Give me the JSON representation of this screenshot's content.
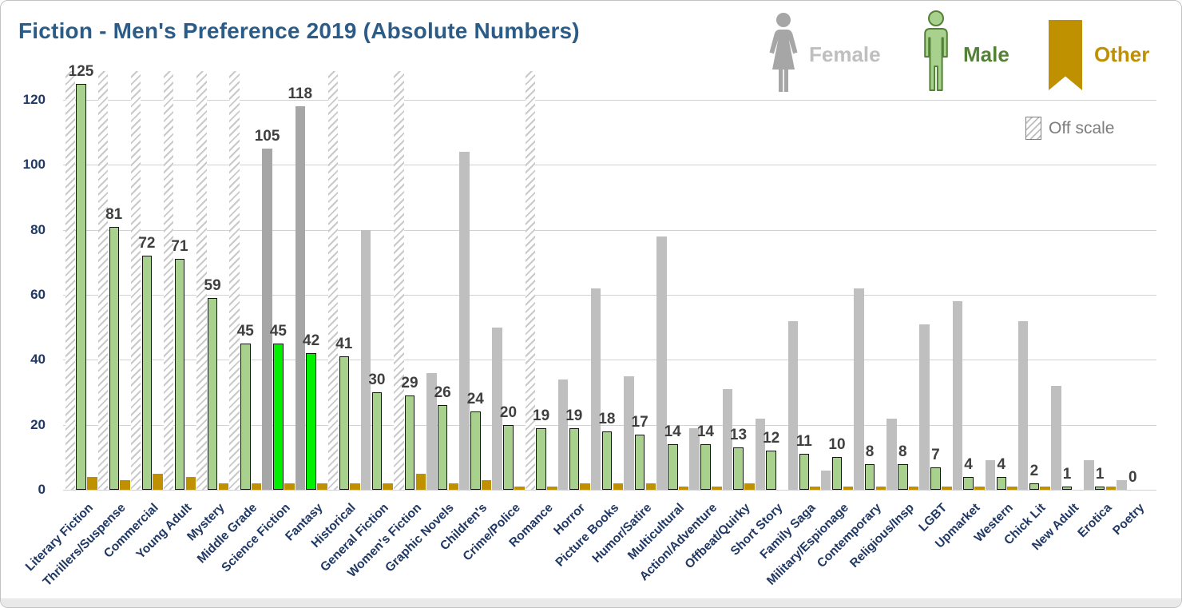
{
  "title": "Fiction - Men's Preference 2019 (Absolute Numbers)",
  "legend": {
    "female": "Female",
    "male": "Male",
    "other": "Other",
    "off_scale": "Off scale"
  },
  "colors": {
    "title": "#2b5c88",
    "axis_labels": "#1f3864",
    "value_labels": "#3f3f3f",
    "female_bar": "#bfbfbf",
    "female_bar_highlight": "#a6a6a6",
    "male_bar": "#a9d18e",
    "male_bar_highlight": "#00f000",
    "male_bar_border": "#141414",
    "other_bar": "#bf9000",
    "gridline": "#d2d2d2",
    "legend_female_text": "#bfbfbf",
    "legend_male_text": "#538135",
    "legend_other_text": "#bf9000",
    "off_scale_text": "#7d7d7d"
  },
  "chart_data": {
    "type": "bar",
    "title": "Fiction - Men's Preference 2019 (Absolute Numbers)",
    "xlabel": "",
    "ylabel": "",
    "ylim": [
      0,
      130
    ],
    "yticks": [
      0,
      20,
      40,
      60,
      80,
      100,
      120
    ],
    "grid": true,
    "legend_position": "top-right",
    "categories": [
      "Literary Fiction",
      "Thrillers/Suspense",
      "Commercial",
      "Young Adult",
      "Mystery",
      "Middle Grade",
      "Science Fiction",
      "Fantasy",
      "Historical",
      "General Fiction",
      "Women's Fiction",
      "Graphic Novels",
      "Children's",
      "Crime/Police",
      "Romance",
      "Horror",
      "Picture Books",
      "Humor/Satire",
      "Multicultural",
      "Action/Adventure",
      "Offbeat/Quirky",
      "Short Story",
      "Family Saga",
      "Military/Espionage",
      "Contemporary",
      "Religious/Insp",
      "LGBT",
      "Upmarket",
      "Western",
      "Chick Lit",
      "New Adult",
      "Erotica",
      "Poetry"
    ],
    "series": [
      {
        "name": "Female",
        "values": [
          null,
          null,
          null,
          null,
          null,
          null,
          105,
          118,
          null,
          80,
          null,
          36,
          104,
          50,
          null,
          34,
          62,
          35,
          78,
          19,
          31,
          22,
          52,
          6,
          62,
          22,
          51,
          58,
          9,
          52,
          32,
          9,
          3
        ],
        "off_scale": [
          true,
          true,
          true,
          true,
          true,
          true,
          false,
          false,
          true,
          false,
          true,
          false,
          false,
          false,
          true,
          false,
          false,
          false,
          false,
          false,
          false,
          false,
          false,
          false,
          false,
          false,
          false,
          false,
          false,
          false,
          false,
          false,
          false
        ]
      },
      {
        "name": "Male",
        "values": [
          125,
          81,
          72,
          71,
          59,
          45,
          45,
          42,
          41,
          30,
          29,
          26,
          24,
          20,
          19,
          19,
          18,
          17,
          14,
          14,
          13,
          12,
          11,
          10,
          8,
          8,
          7,
          4,
          4,
          2,
          1,
          1,
          0
        ],
        "labels_shown": true
      },
      {
        "name": "Other",
        "values": [
          4,
          3,
          5,
          4,
          2,
          2,
          2,
          2,
          2,
          2,
          5,
          2,
          3,
          1,
          1,
          2,
          2,
          2,
          1,
          1,
          2,
          0,
          1,
          1,
          1,
          1,
          1,
          1,
          1,
          1,
          0,
          1,
          0
        ],
        "labels_shown": false
      }
    ],
    "highlighted_categories": [
      "Science Fiction",
      "Fantasy"
    ],
    "female_value_labels_shown_for": [
      "Science Fiction",
      "Fantasy"
    ],
    "off_scale_note": "Hatched female bars exceed the visible axis range"
  }
}
